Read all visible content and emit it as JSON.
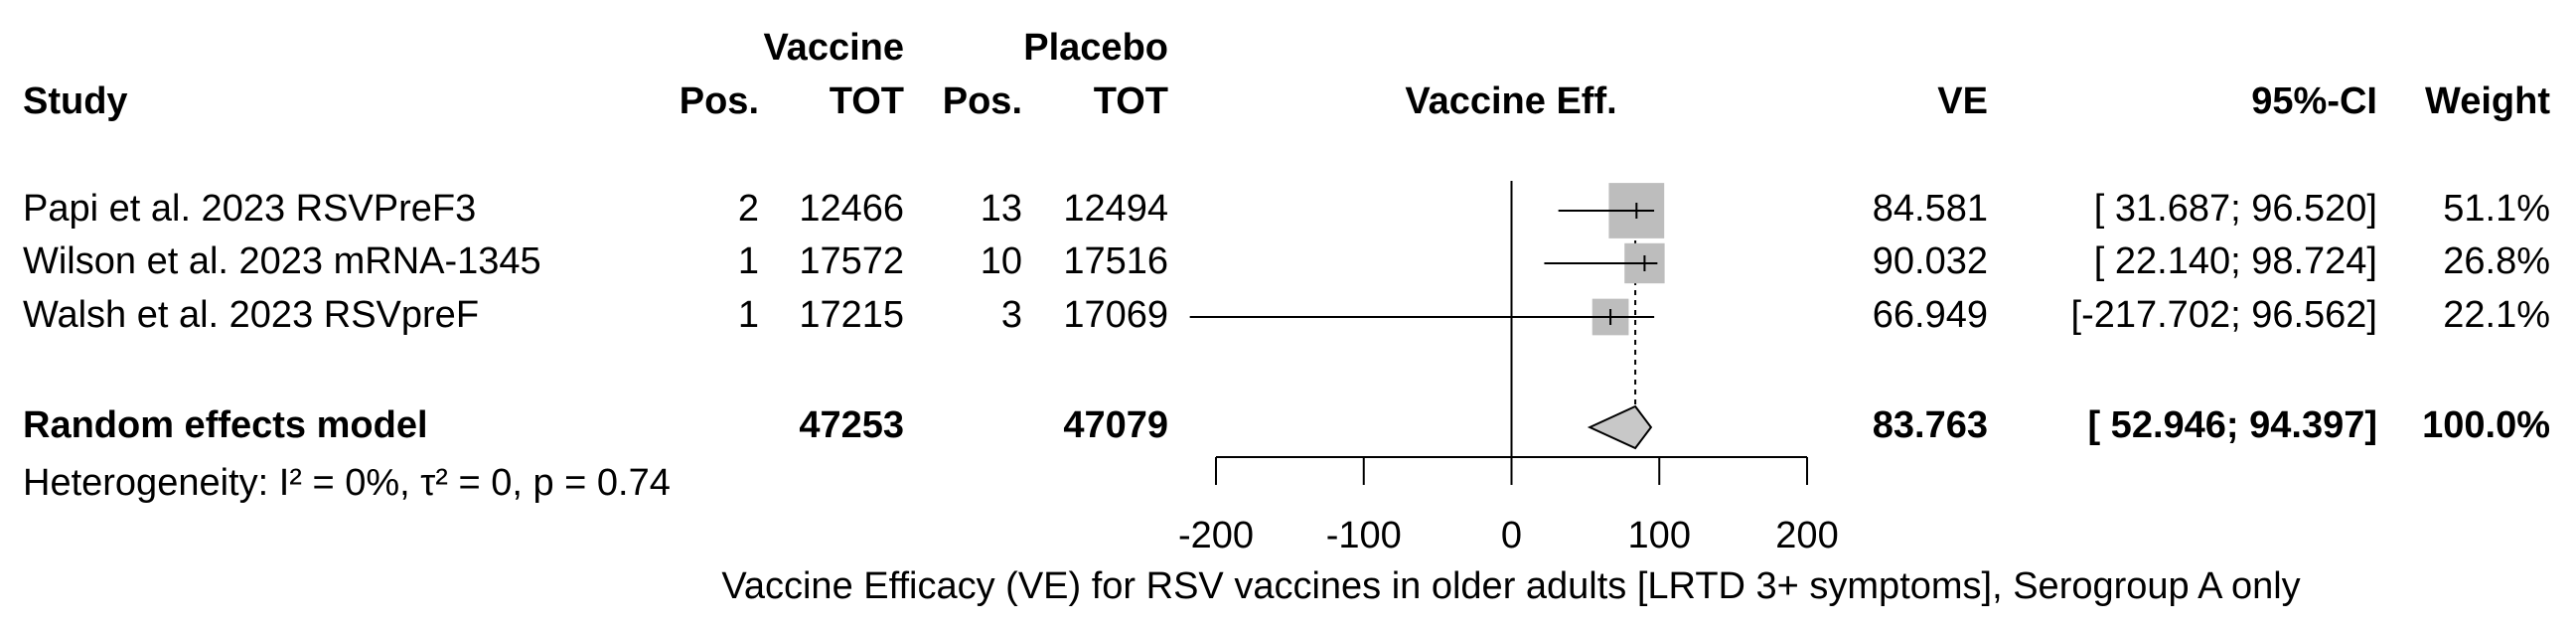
{
  "chart_data": {
    "type": "forest",
    "headers": {
      "vaccine": "Vaccine",
      "placebo": "Placebo",
      "study": "Study",
      "vaccine_pos": "Pos.",
      "vaccine_tot": "TOT",
      "placebo_pos": "Pos.",
      "placebo_tot": "TOT",
      "effect": "Vaccine Eff.",
      "ve": "VE",
      "ci": "95%-CI",
      "weight": "Weight"
    },
    "studies": [
      {
        "name": "Papi et al. 2023 RSVPreF3",
        "vaccine_pos": 2,
        "vaccine_tot": 12466,
        "placebo_pos": 13,
        "placebo_tot": 12494,
        "ve": 84.581,
        "ci_lower": 31.687,
        "ci_upper": 96.52,
        "ci_label": "[ 31.687; 96.520]",
        "weight": 51.1,
        "weight_label": "51.1%"
      },
      {
        "name": "Wilson et al. 2023 mRNA-1345",
        "vaccine_pos": 1,
        "vaccine_tot": 17572,
        "placebo_pos": 10,
        "placebo_tot": 17516,
        "ve": 90.032,
        "ci_lower": 22.14,
        "ci_upper": 98.724,
        "ci_label": "[ 22.140; 98.724]",
        "weight": 26.8,
        "weight_label": "26.8%"
      },
      {
        "name": "Walsh et al. 2023 RSVpreF",
        "vaccine_pos": 1,
        "vaccine_tot": 17215,
        "placebo_pos": 3,
        "placebo_tot": 17069,
        "ve": 66.949,
        "ci_lower": -217.702,
        "ci_upper": 96.562,
        "ci_label": "[-217.702; 96.562]",
        "weight": 22.1,
        "weight_label": "22.1%"
      }
    ],
    "pooled": {
      "name": "Random effects model",
      "vaccine_tot": 47253,
      "placebo_tot": 47079,
      "ve": 83.763,
      "ci_lower": 52.946,
      "ci_upper": 94.397,
      "ci_label": "[ 52.946; 94.397]",
      "weight": 100,
      "weight_label": "100.0%"
    },
    "heterogeneity": "Heterogeneity: I² = 0%, τ² = 0, p = 0.74",
    "xlabel": "Vaccine Efficacy (VE) for RSV vaccines in older adults [LRTD 3+ symptoms], Serogroup A only",
    "xlim": [
      -200,
      200
    ],
    "xticks": [
      -200,
      -100,
      0,
      100,
      200
    ],
    "box_color": "#bdbdbd",
    "diamond_color": "#c8c8c8"
  }
}
